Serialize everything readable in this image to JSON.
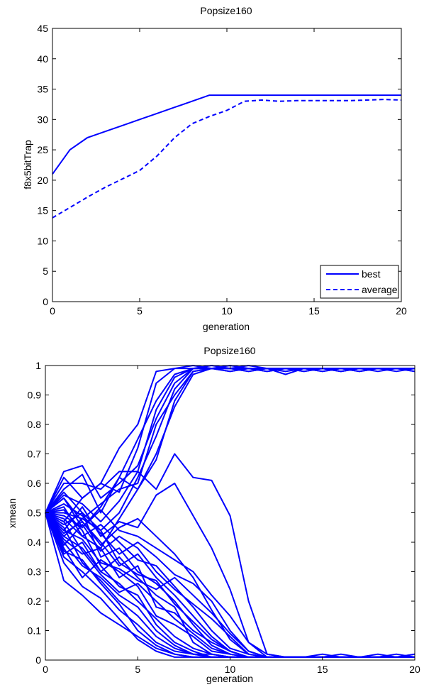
{
  "chart_data": [
    {
      "type": "line",
      "title": "Popsize160",
      "xlabel": "generation",
      "ylabel": "f8x5bitTrap",
      "xlim": [
        0,
        20
      ],
      "ylim": [
        0,
        45
      ],
      "xticks": [
        0,
        5,
        10,
        15,
        20
      ],
      "yticks": [
        0,
        5,
        10,
        15,
        20,
        25,
        30,
        35,
        40,
        45
      ],
      "grid": false,
      "legend_position": "bottom-right",
      "series": [
        {
          "name": "best",
          "style": "solid",
          "color": "#0000ff",
          "x": [
            0,
            1,
            2,
            3,
            4,
            5,
            6,
            7,
            8,
            9,
            10,
            11,
            12,
            13,
            14,
            15,
            16,
            17,
            18,
            19,
            20
          ],
          "y": [
            21,
            25,
            27,
            28,
            29,
            30,
            31,
            32,
            33,
            34,
            34,
            34,
            34,
            34,
            34,
            34,
            34,
            34,
            34,
            34,
            34
          ]
        },
        {
          "name": "average",
          "style": "dashed",
          "color": "#0000ff",
          "x": [
            0,
            1,
            2,
            3,
            4,
            5,
            6,
            7,
            8,
            9,
            10,
            11,
            12,
            13,
            14,
            15,
            16,
            17,
            18,
            19,
            20
          ],
          "y": [
            13.8,
            15.5,
            17.2,
            18.8,
            20.2,
            21.6,
            24,
            27,
            29.3,
            30.5,
            31.5,
            33.0,
            33.2,
            33.0,
            33.1,
            33.1,
            33.1,
            33.1,
            33.2,
            33.3,
            33.2
          ]
        }
      ]
    },
    {
      "type": "line",
      "title": "Popsize160",
      "xlabel": "generation",
      "ylabel": "xmean",
      "xlim": [
        0,
        20
      ],
      "ylim": [
        0,
        1
      ],
      "xticks": [
        0,
        5,
        10,
        15,
        20
      ],
      "yticks": [
        0,
        0.1,
        0.2,
        0.3,
        0.4,
        0.5,
        0.6,
        0.7,
        0.8,
        0.9,
        1
      ],
      "grid": false,
      "color": "#0000ff",
      "x": [
        0,
        1,
        2,
        3,
        4,
        5,
        6,
        7,
        8,
        9,
        10,
        11,
        12,
        13,
        14,
        15,
        16,
        17,
        18,
        19,
        20
      ],
      "series": [
        {
          "y": [
            0.5,
            0.62,
            0.55,
            0.6,
            0.72,
            0.8,
            0.98,
            0.99,
            1.0,
            0.99,
            0.99,
            1.0,
            0.99,
            0.98,
            0.99,
            0.99,
            0.98,
            0.99,
            0.99,
            0.99,
            0.99
          ]
        },
        {
          "y": [
            0.5,
            0.58,
            0.63,
            0.5,
            0.62,
            0.75,
            0.88,
            0.97,
            0.99,
            1.0,
            0.99,
            0.99,
            0.98,
            0.99,
            0.98,
            0.99,
            0.99,
            0.98,
            0.99,
            0.99,
            0.98
          ]
        },
        {
          "y": [
            0.5,
            0.64,
            0.66,
            0.55,
            0.6,
            0.66,
            0.82,
            0.94,
            0.99,
            0.99,
            1.0,
            0.99,
            0.99,
            0.98,
            0.99,
            0.98,
            0.99,
            0.99,
            0.99,
            0.98,
            0.99
          ]
        },
        {
          "y": [
            0.5,
            0.6,
            0.6,
            0.58,
            0.64,
            0.64,
            0.85,
            0.96,
            0.99,
            0.99,
            0.98,
            0.99,
            0.99,
            0.99,
            0.99,
            0.99,
            0.98,
            0.99,
            0.99,
            0.99,
            0.99
          ]
        },
        {
          "y": [
            0.5,
            0.55,
            0.45,
            0.52,
            0.62,
            0.58,
            0.68,
            0.88,
            0.98,
            0.99,
            0.99,
            0.98,
            0.99,
            0.99,
            0.98,
            0.99,
            0.99,
            0.99,
            0.98,
            0.99,
            0.98
          ]
        },
        {
          "y": [
            0.5,
            0.52,
            0.42,
            0.38,
            0.48,
            0.58,
            0.7,
            0.86,
            0.97,
            0.99,
            0.99,
            0.99,
            0.98,
            0.99,
            0.99,
            0.99,
            0.98,
            0.99,
            0.99,
            0.99,
            0.99
          ]
        },
        {
          "y": [
            0.5,
            0.57,
            0.5,
            0.44,
            0.5,
            0.62,
            0.76,
            0.92,
            0.99,
            0.99,
            0.98,
            0.99,
            0.99,
            0.99,
            0.99,
            0.98,
            0.99,
            0.99,
            0.99,
            0.99,
            0.99
          ]
        },
        {
          "y": [
            0.5,
            0.47,
            0.55,
            0.6,
            0.57,
            0.72,
            0.94,
            0.99,
            0.99,
            0.99,
            0.99,
            0.99,
            0.99,
            0.97,
            0.99,
            0.99,
            0.99,
            0.99,
            0.99,
            0.99,
            0.99
          ]
        },
        {
          "y": [
            0.5,
            0.5,
            0.48,
            0.53,
            0.58,
            0.6,
            0.8,
            0.9,
            0.98,
            0.99,
            0.99,
            0.98,
            0.99,
            0.99,
            0.99,
            0.99,
            0.99,
            0.98,
            0.99,
            0.99,
            0.99
          ]
        },
        {
          "y": [
            0.5,
            0.56,
            0.53,
            0.47,
            0.54,
            0.64,
            0.58,
            0.7,
            0.62,
            0.61,
            0.49,
            0.2,
            0.02,
            0.01,
            0.01,
            0.01,
            0.02,
            0.01,
            0.01,
            0.01,
            0.01
          ]
        },
        {
          "y": [
            0.5,
            0.44,
            0.52,
            0.42,
            0.47,
            0.45,
            0.56,
            0.6,
            0.49,
            0.38,
            0.24,
            0.06,
            0.01,
            0.01,
            0.01,
            0.01,
            0.01,
            0.01,
            0.02,
            0.01,
            0.01
          ]
        },
        {
          "y": [
            0.5,
            0.42,
            0.38,
            0.3,
            0.35,
            0.28,
            0.22,
            0.18,
            0.06,
            0.02,
            0.01,
            0.01,
            0.01,
            0.01,
            0.01,
            0.02,
            0.01,
            0.01,
            0.01,
            0.01,
            0.01
          ]
        },
        {
          "y": [
            0.5,
            0.35,
            0.3,
            0.24,
            0.17,
            0.12,
            0.06,
            0.03,
            0.02,
            0.01,
            0.01,
            0.01,
            0.01,
            0.01,
            0.01,
            0.01,
            0.01,
            0.01,
            0.01,
            0.01,
            0.01
          ]
        },
        {
          "y": [
            0.5,
            0.27,
            0.22,
            0.16,
            0.12,
            0.08,
            0.04,
            0.02,
            0.01,
            0.01,
            0.01,
            0.01,
            0.01,
            0.01,
            0.01,
            0.01,
            0.01,
            0.01,
            0.01,
            0.01,
            0.02
          ]
        },
        {
          "y": [
            0.5,
            0.4,
            0.32,
            0.28,
            0.22,
            0.18,
            0.1,
            0.05,
            0.02,
            0.02,
            0.01,
            0.01,
            0.01,
            0.01,
            0.01,
            0.01,
            0.01,
            0.01,
            0.01,
            0.01,
            0.01
          ]
        },
        {
          "y": [
            0.5,
            0.46,
            0.5,
            0.35,
            0.38,
            0.3,
            0.26,
            0.2,
            0.12,
            0.05,
            0.02,
            0.01,
            0.01,
            0.01,
            0.01,
            0.01,
            0.01,
            0.01,
            0.01,
            0.02,
            0.01
          ]
        },
        {
          "y": [
            0.5,
            0.38,
            0.28,
            0.34,
            0.3,
            0.25,
            0.15,
            0.12,
            0.08,
            0.03,
            0.02,
            0.01,
            0.01,
            0.01,
            0.01,
            0.01,
            0.01,
            0.01,
            0.01,
            0.01,
            0.01
          ]
        },
        {
          "y": [
            0.5,
            0.48,
            0.42,
            0.46,
            0.4,
            0.34,
            0.32,
            0.25,
            0.18,
            0.1,
            0.04,
            0.02,
            0.01,
            0.01,
            0.01,
            0.01,
            0.01,
            0.01,
            0.01,
            0.01,
            0.01
          ]
        },
        {
          "y": [
            0.5,
            0.43,
            0.47,
            0.4,
            0.32,
            0.36,
            0.28,
            0.22,
            0.15,
            0.08,
            0.03,
            0.01,
            0.01,
            0.01,
            0.01,
            0.01,
            0.01,
            0.01,
            0.01,
            0.01,
            0.01
          ]
        },
        {
          "y": [
            0.5,
            0.36,
            0.4,
            0.3,
            0.26,
            0.2,
            0.14,
            0.08,
            0.04,
            0.02,
            0.01,
            0.01,
            0.01,
            0.01,
            0.01,
            0.01,
            0.01,
            0.01,
            0.01,
            0.01,
            0.01
          ]
        },
        {
          "y": [
            0.5,
            0.49,
            0.45,
            0.51,
            0.44,
            0.42,
            0.38,
            0.34,
            0.3,
            0.22,
            0.15,
            0.06,
            0.02,
            0.01,
            0.01,
            0.01,
            0.01,
            0.01,
            0.01,
            0.01,
            0.01
          ]
        },
        {
          "y": [
            0.5,
            0.41,
            0.36,
            0.38,
            0.28,
            0.32,
            0.18,
            0.16,
            0.1,
            0.06,
            0.03,
            0.01,
            0.01,
            0.01,
            0.01,
            0.01,
            0.01,
            0.01,
            0.01,
            0.01,
            0.01
          ]
        },
        {
          "y": [
            0.5,
            0.53,
            0.49,
            0.43,
            0.36,
            0.4,
            0.35,
            0.29,
            0.26,
            0.2,
            0.1,
            0.03,
            0.01,
            0.01,
            0.01,
            0.01,
            0.01,
            0.01,
            0.01,
            0.01,
            0.02
          ]
        },
        {
          "y": [
            0.5,
            0.45,
            0.33,
            0.27,
            0.2,
            0.15,
            0.08,
            0.04,
            0.02,
            0.01,
            0.01,
            0.01,
            0.01,
            0.01,
            0.01,
            0.01,
            0.01,
            0.01,
            0.01,
            0.01,
            0.01
          ]
        },
        {
          "y": [
            0.5,
            0.39,
            0.46,
            0.37,
            0.42,
            0.38,
            0.3,
            0.24,
            0.19,
            0.14,
            0.08,
            0.02,
            0.01,
            0.01,
            0.01,
            0.01,
            0.01,
            0.01,
            0.01,
            0.01,
            0.01
          ]
        },
        {
          "y": [
            0.5,
            0.51,
            0.44,
            0.32,
            0.25,
            0.22,
            0.12,
            0.06,
            0.03,
            0.01,
            0.01,
            0.01,
            0.01,
            0.01,
            0.01,
            0.01,
            0.01,
            0.01,
            0.01,
            0.01,
            0.01
          ]
        },
        {
          "y": [
            0.5,
            0.47,
            0.37,
            0.29,
            0.23,
            0.26,
            0.2,
            0.14,
            0.09,
            0.04,
            0.02,
            0.01,
            0.01,
            0.01,
            0.01,
            0.01,
            0.01,
            0.01,
            0.01,
            0.01,
            0.01
          ]
        },
        {
          "y": [
            0.5,
            0.44,
            0.41,
            0.33,
            0.31,
            0.27,
            0.24,
            0.28,
            0.22,
            0.16,
            0.09,
            0.03,
            0.01,
            0.01,
            0.01,
            0.01,
            0.01,
            0.01,
            0.01,
            0.01,
            0.01
          ]
        },
        {
          "y": [
            0.5,
            0.37,
            0.34,
            0.26,
            0.19,
            0.1,
            0.05,
            0.02,
            0.01,
            0.01,
            0.01,
            0.01,
            0.01,
            0.01,
            0.01,
            0.01,
            0.01,
            0.01,
            0.01,
            0.01,
            0.01
          ]
        },
        {
          "y": [
            0.5,
            0.55,
            0.47,
            0.39,
            0.45,
            0.48,
            0.42,
            0.36,
            0.28,
            0.17,
            0.07,
            0.02,
            0.01,
            0.01,
            0.01,
            0.01,
            0.01,
            0.01,
            0.01,
            0.01,
            0.01
          ]
        },
        {
          "y": [
            0.5,
            0.33,
            0.25,
            0.21,
            0.14,
            0.07,
            0.03,
            0.01,
            0.01,
            0.01,
            0.01,
            0.01,
            0.01,
            0.01,
            0.01,
            0.01,
            0.01,
            0.01,
            0.01,
            0.01,
            0.01
          ]
        },
        {
          "y": [
            0.5,
            0.42,
            0.48,
            0.44,
            0.33,
            0.29,
            0.27,
            0.19,
            0.13,
            0.07,
            0.03,
            0.01,
            0.01,
            0.01,
            0.01,
            0.01,
            0.01,
            0.01,
            0.01,
            0.01,
            0.01
          ]
        }
      ]
    }
  ]
}
